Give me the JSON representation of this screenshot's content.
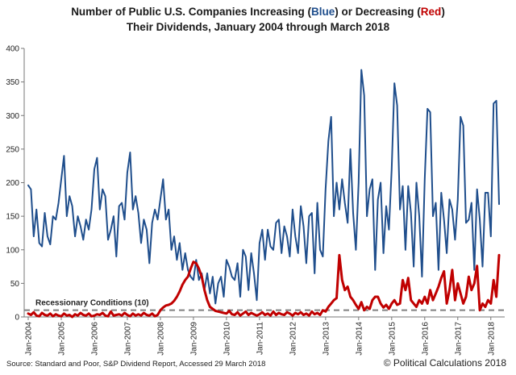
{
  "header": {
    "title_part1": "Number of Public U.S. Companies Increasing (",
    "title_blue": "Blue",
    "title_part2": ")  or Decreasing (",
    "title_red": "Red",
    "title_part3": ")",
    "title_line2": "Their Dividends, January 2004 through March 2018"
  },
  "footer": {
    "source": "Source:  Standard and Poor, S&P Dividend  Report, Accessed 29 March 2018",
    "credit": "© Political Calculations 2018"
  },
  "chart_data": {
    "type": "line",
    "title": "Number of Public U.S. Companies Increasing (Blue)  or Decreasing (Red) Their Dividends, January 2004 through March 2018",
    "xlabel": "",
    "ylabel": "",
    "ylim": [
      0,
      400
    ],
    "yticks": [
      0,
      50,
      100,
      150,
      200,
      250,
      300,
      350,
      400
    ],
    "x_start": "Jan-2004",
    "x_end": "Mar-2018",
    "x_tick_labels": [
      "Jan-2004",
      "Jan-2005",
      "Jan-2006",
      "Jan-2007",
      "Jan-2008",
      "Jan-2009",
      "Jan-2010",
      "Jan-2011",
      "Jan-2012",
      "Jan-2013",
      "Jan-2014",
      "Jan-2015",
      "Jan-2016",
      "Jan-2017",
      "Jan-2018"
    ],
    "grid": false,
    "legend": "none",
    "colors": {
      "increasing": "#1f4e8c",
      "decreasing": "#c00000",
      "recession": "#808080"
    },
    "annotation": {
      "text": "Recessionary Conditions (10)",
      "value": 10
    },
    "series": [
      {
        "values": [
          196,
          190,
          120,
          160,
          110,
          105,
          155,
          120,
          108,
          150,
          145,
          170,
          205,
          240,
          150,
          180,
          165,
          120,
          150,
          135,
          115,
          145,
          130,
          160,
          220,
          237,
          160,
          190,
          180,
          115,
          130,
          150,
          90,
          165,
          170,
          145,
          215,
          245,
          160,
          180,
          155,
          110,
          145,
          130,
          80,
          140,
          160,
          145,
          175,
          205,
          145,
          160,
          100,
          120,
          85,
          110,
          70,
          95,
          70,
          60,
          55,
          85,
          55,
          65,
          40,
          65,
          35,
          60,
          20,
          50,
          60,
          30,
          85,
          75,
          60,
          55,
          80,
          30,
          100,
          90,
          40,
          95,
          65,
          25,
          110,
          130,
          85,
          130,
          105,
          100,
          140,
          145,
          95,
          135,
          120,
          90,
          160,
          120,
          95,
          165,
          135,
          80,
          150,
          155,
          65,
          170,
          100,
          90,
          190,
          262,
          298,
          150,
          200,
          160,
          205,
          170,
          140,
          250,
          155,
          100,
          200,
          368,
          330,
          150,
          190,
          205,
          70,
          175,
          200,
          95,
          165,
          130,
          220,
          348,
          315,
          160,
          195,
          100,
          195,
          155,
          75,
          200,
          150,
          60,
          205,
          310,
          305,
          150,
          170,
          70,
          185,
          145,
          95,
          175,
          160,
          115,
          175,
          298,
          285,
          140,
          145,
          170,
          70,
          190,
          145,
          75,
          185,
          185,
          120,
          318,
          322,
          168
        ]
      },
      {
        "values": [
          5,
          3,
          7,
          2,
          1,
          6,
          3,
          2,
          5,
          1,
          4,
          2,
          1,
          5,
          2,
          3,
          0,
          4,
          2,
          6,
          3,
          2,
          5,
          1,
          2,
          4,
          3,
          6,
          2,
          1,
          8,
          2,
          3,
          4,
          2,
          6,
          3,
          1,
          5,
          2,
          4,
          2,
          6,
          3,
          2,
          5,
          1,
          3,
          10,
          14,
          17,
          18,
          20,
          24,
          30,
          38,
          48,
          55,
          60,
          72,
          82,
          80,
          72,
          60,
          40,
          25,
          15,
          12,
          9,
          8,
          7,
          6,
          5,
          9,
          4,
          3,
          7,
          2,
          5,
          8,
          3,
          6,
          4,
          2,
          4,
          7,
          3,
          5,
          2,
          8,
          3,
          6,
          4,
          3,
          7,
          5,
          2,
          6,
          4,
          7,
          3,
          5,
          2,
          8,
          4,
          6,
          3,
          10,
          8,
          15,
          20,
          25,
          28,
          92,
          55,
          40,
          45,
          30,
          25,
          18,
          12,
          22,
          10,
          15,
          12,
          25,
          30,
          30,
          20,
          14,
          18,
          12,
          20,
          25,
          18,
          20,
          55,
          40,
          58,
          25,
          20,
          15,
          25,
          20,
          30,
          20,
          40,
          25,
          35,
          45,
          58,
          68,
          20,
          40,
          70,
          25,
          50,
          35,
          20,
          30,
          60,
          40,
          50,
          76,
          10,
          20,
          15,
          25,
          20,
          55,
          30,
          92
        ]
      }
    ]
  }
}
